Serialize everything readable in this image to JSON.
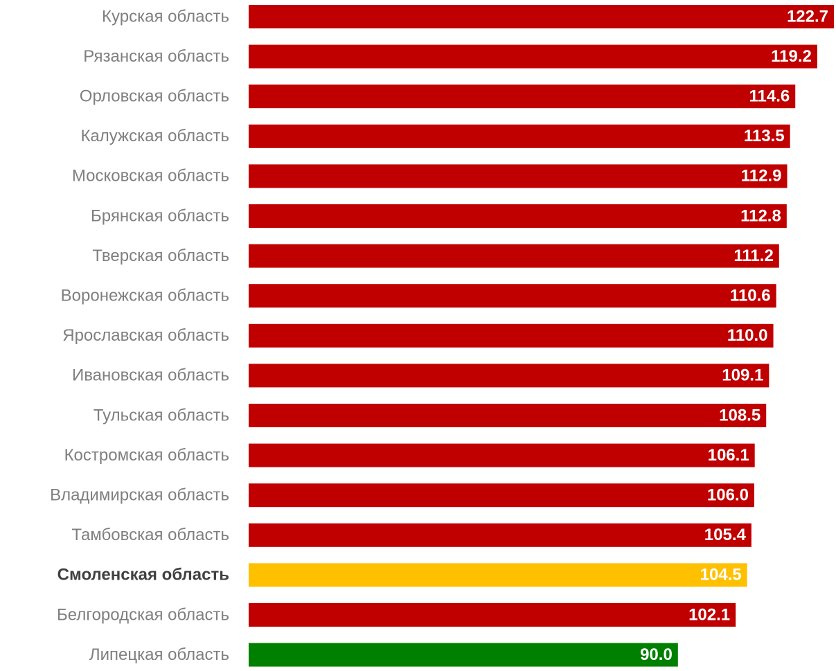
{
  "chart_data": {
    "type": "hbar",
    "categories": [
      "Курская область",
      "Рязанская область",
      "Орловская область",
      "Калужская область",
      "Московская область",
      "Брянская область",
      "Тверская область",
      "Воронежская область",
      "Ярославская область",
      "Ивановская область",
      "Тульская область",
      "Костромская область",
      "Владимирская область",
      "Тамбовская область",
      "Смоленская область",
      "Белгородская область",
      "Липецкая область"
    ],
    "values": [
      122.7,
      119.2,
      114.6,
      113.5,
      112.9,
      112.8,
      111.2,
      110.6,
      110.0,
      109.1,
      108.5,
      106.1,
      106.0,
      105.4,
      104.5,
      102.1,
      90.0
    ],
    "value_labels": [
      "122.7",
      "119.2",
      "114.6",
      "113.5",
      "112.9",
      "112.8",
      "111.2",
      "110.6",
      "110.0",
      "109.1",
      "108.5",
      "106.1",
      "106.0",
      "105.4",
      "104.5",
      "102.1",
      "90.0"
    ],
    "colors": [
      "#c00000",
      "#c00000",
      "#c00000",
      "#c00000",
      "#c00000",
      "#c00000",
      "#c00000",
      "#c00000",
      "#c00000",
      "#c00000",
      "#c00000",
      "#c00000",
      "#c00000",
      "#c00000",
      "#ffc000",
      "#c00000",
      "#008000"
    ],
    "bold": [
      false,
      false,
      false,
      false,
      false,
      false,
      false,
      false,
      false,
      false,
      false,
      false,
      false,
      false,
      true,
      false,
      false
    ]
  }
}
